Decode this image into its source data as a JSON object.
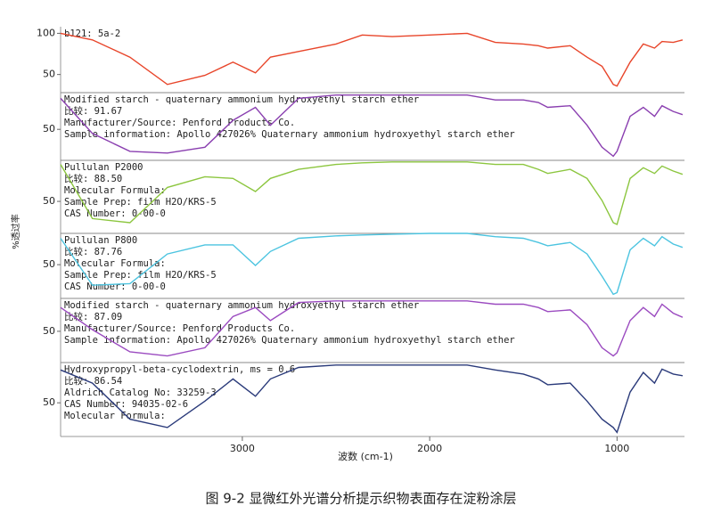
{
  "caption": "图 9-2  显微红外光谱分析提示织物表面存在淀粉涂层",
  "chart_data": [
    {
      "type": "line",
      "ylabel": "%透过率",
      "annotations": [
        "b121: 5a-2"
      ],
      "color": "#e8452a",
      "ylim": [
        28,
        108
      ],
      "yticks": [
        50,
        100
      ],
      "x": [
        3970,
        3800,
        3600,
        3400,
        3200,
        3050,
        2930,
        2850,
        2700,
        2500,
        2360,
        2200,
        2000,
        1800,
        1650,
        1500,
        1420,
        1370,
        1250,
        1160,
        1080,
        1020,
        1000,
        930,
        860,
        800,
        760,
        700,
        650
      ],
      "values": [
        100,
        92,
        71,
        38,
        49,
        65,
        52,
        71,
        78,
        87,
        98,
        96,
        98,
        100,
        89,
        87,
        85,
        82,
        85,
        71,
        60,
        38,
        36,
        65,
        87,
        82,
        90,
        89,
        92
      ]
    },
    {
      "type": "line",
      "annotations": [
        "Modified starch - quaternary ammonium hydroxyethyl starch ether",
        "比较: 91.67",
        "Manufacturer/Source:  Penford Products Co.",
        "Sample information:  Apollo 427026% Quaternary ammonium hydroxyethyl starch ether"
      ],
      "color": "#8a3fb0",
      "ylim": [
        12,
        95
      ],
      "yticks": [
        50
      ],
      "x": [
        3970,
        3800,
        3600,
        3400,
        3200,
        3050,
        2930,
        2850,
        2700,
        2500,
        2360,
        2200,
        2000,
        1800,
        1650,
        1500,
        1420,
        1370,
        1250,
        1160,
        1080,
        1020,
        1000,
        930,
        860,
        800,
        760,
        700,
        650
      ],
      "values": [
        88,
        45,
        23,
        21,
        28,
        61,
        77,
        55,
        88,
        92,
        92,
        92,
        92,
        92,
        86,
        86,
        83,
        77,
        79,
        55,
        28,
        17,
        23,
        66,
        77,
        66,
        79,
        72,
        68
      ]
    },
    {
      "type": "line",
      "annotations": [
        "Pullulan P2000",
        "比较: 88.50",
        "Molecular Formula:",
        "Sample Prep:  film H2O/KRS-5",
        "CAS Number:         0-00-0"
      ],
      "color": "#8cc63f",
      "ylim": [
        11,
        100
      ],
      "yticks": [
        50
      ],
      "x": [
        3970,
        3800,
        3600,
        3400,
        3200,
        3050,
        2930,
        2850,
        2700,
        2500,
        2360,
        2200,
        2000,
        1800,
        1650,
        1500,
        1420,
        1370,
        1250,
        1160,
        1080,
        1020,
        1000,
        930,
        860,
        800,
        760,
        700,
        650
      ],
      "values": [
        95,
        29,
        24,
        67,
        80,
        78,
        62,
        78,
        89,
        95,
        97,
        98,
        98,
        98,
        95,
        95,
        89,
        84,
        89,
        78,
        51,
        24,
        22,
        78,
        91,
        84,
        93,
        87,
        83
      ]
    },
    {
      "type": "line",
      "annotations": [
        "Pullulan P800",
        "比较: 87.76",
        "Molecular Formula:",
        "Sample Prep:  film H2O/KRS-5",
        "CAS Number:         0-00-0"
      ],
      "color": "#4cc4e0",
      "ylim": [
        9,
        88
      ],
      "yticks": [
        50
      ],
      "x": [
        3970,
        3800,
        3600,
        3400,
        3200,
        3050,
        2930,
        2850,
        2700,
        2500,
        2360,
        2200,
        2000,
        1800,
        1650,
        1500,
        1420,
        1370,
        1250,
        1160,
        1080,
        1020,
        1000,
        930,
        860,
        800,
        760,
        700,
        650
      ],
      "values": [
        82,
        25,
        27,
        63,
        74,
        74,
        49,
        66,
        82,
        85,
        86,
        87,
        88,
        88,
        84,
        82,
        77,
        73,
        77,
        63,
        36,
        14,
        16,
        68,
        82,
        73,
        84,
        75,
        71
      ]
    },
    {
      "type": "line",
      "annotations": [
        "Modified starch - quaternary ammonium hydroxyethyl starch ether",
        "比较: 87.09",
        "Manufacturer/Source:  Penford Products Co.",
        "Sample information:  Apollo 427026% Quaternary ammonium hydroxyethyl starch ether"
      ],
      "color": "#9b4bc0",
      "ylim": [
        12,
        90
      ],
      "yticks": [
        50
      ],
      "x": [
        3970,
        3800,
        3600,
        3400,
        3200,
        3050,
        2930,
        2850,
        2700,
        2500,
        2360,
        2200,
        2000,
        1800,
        1650,
        1500,
        1420,
        1370,
        1250,
        1160,
        1080,
        1020,
        1000,
        930,
        860,
        800,
        760,
        700,
        650
      ],
      "values": [
        79,
        52,
        25,
        20,
        30,
        68,
        79,
        63,
        85,
        87,
        87,
        87,
        87,
        87,
        83,
        83,
        79,
        74,
        76,
        58,
        30,
        20,
        24,
        63,
        79,
        68,
        83,
        72,
        67
      ]
    },
    {
      "type": "line",
      "annotations": [
        "Hydroxypropyl-beta-cyclodextrin, ms = 0.6",
        "比较: 86.54",
        "Aldrich Catalog No:  33259-3",
        "CAS Number:   94035-02-6",
        "Molecular Formula:"
      ],
      "color": "#2a3a7a",
      "ylim": [
        9,
        99
      ],
      "yticks": [
        50
      ],
      "xlim": [
        3970,
        640
      ],
      "xticks": [
        3000,
        2000,
        1000
      ],
      "xlabel": "波数 (cm-1)",
      "x": [
        3970,
        3800,
        3600,
        3400,
        3200,
        3050,
        2930,
        2850,
        2700,
        2500,
        2360,
        2200,
        2000,
        1800,
        1650,
        1500,
        1420,
        1370,
        1250,
        1160,
        1080,
        1020,
        1000,
        930,
        860,
        800,
        760,
        700,
        650
      ],
      "values": [
        90,
        74,
        30,
        20,
        52,
        79,
        58,
        79,
        93,
        96,
        96,
        96,
        96,
        96,
        90,
        85,
        79,
        72,
        74,
        52,
        30,
        20,
        14,
        63,
        87,
        74,
        91,
        85,
        83
      ]
    }
  ]
}
